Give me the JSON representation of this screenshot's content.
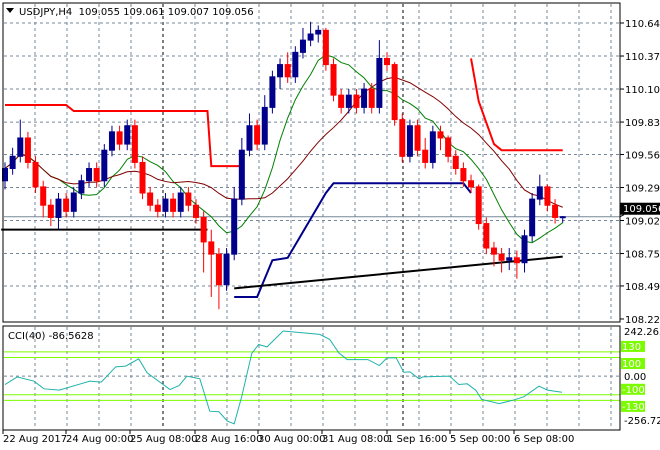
{
  "window": {
    "symbol_title": "USDJPY,H4  109.055 109.061 109.007 109.056",
    "menu_icon": "triangle-down-icon"
  },
  "colors": {
    "bull_candle": "#00008b",
    "bear_candle": "#ff0000",
    "ma_fast": "#008000",
    "ma_slow": "#800000",
    "upper_stop": "#ff0000",
    "lower_stop": "#00008b",
    "trendline": "#000000",
    "cci_line": "#20b2aa",
    "cci_levels": "#7cfc00",
    "grid": "#778899"
  },
  "price_axis": {
    "labels": [
      "110.640",
      "110.370",
      "110.100",
      "109.830",
      "109.565",
      "109.295",
      "109.025",
      "108.755",
      "108.490",
      "108.220"
    ],
    "current_price": "109.056"
  },
  "time_axis": {
    "labels": [
      "22 Aug 2017",
      "24 Aug 00:00",
      "25 Aug 08:00",
      "28 Aug 16:00",
      "30 Aug 00:00",
      "31 Aug 08:00",
      "1 Sep 16:00",
      "5 Sep 00:00",
      "6 Sep 08:00"
    ]
  },
  "cci": {
    "label": "CCI(40) -86.5628",
    "axis_max": "242.2636",
    "axis_zero": "0.00",
    "axis_min": "-256.7237",
    "levels": [
      "130",
      "100",
      "-100",
      "-130"
    ]
  },
  "chart_data": [
    {
      "type": "candlestick",
      "title": "USDJPY,H4",
      "ylim": [
        108.22,
        110.64
      ],
      "ohlc": [
        [
          109.35,
          109.5,
          109.28,
          109.45
        ],
        [
          109.45,
          109.62,
          109.4,
          109.55
        ],
        [
          109.55,
          109.85,
          109.5,
          109.7
        ],
        [
          109.7,
          109.75,
          109.45,
          109.5
        ],
        [
          109.5,
          109.55,
          109.25,
          109.3
        ],
        [
          109.3,
          109.35,
          109.05,
          109.15
        ],
        [
          109.15,
          109.2,
          108.98,
          109.05
        ],
        [
          109.05,
          109.25,
          108.95,
          109.2
        ],
        [
          109.2,
          109.25,
          109.05,
          109.1
        ],
        [
          109.1,
          109.3,
          109.05,
          109.25
        ],
        [
          109.25,
          109.4,
          109.2,
          109.35
        ],
        [
          109.35,
          109.5,
          109.3,
          109.45
        ],
        [
          109.45,
          109.5,
          109.3,
          109.35
        ],
        [
          109.35,
          109.65,
          109.3,
          109.6
        ],
        [
          109.6,
          109.8,
          109.55,
          109.75
        ],
        [
          109.75,
          109.8,
          109.6,
          109.65
        ],
        [
          109.65,
          109.85,
          109.6,
          109.8
        ],
        [
          109.8,
          109.85,
          109.45,
          109.5
        ],
        [
          109.5,
          109.55,
          109.2,
          109.25
        ],
        [
          109.25,
          109.3,
          109.1,
          109.15
        ],
        [
          109.15,
          109.2,
          109.05,
          109.1
        ],
        [
          109.1,
          109.25,
          109.05,
          109.2
        ],
        [
          109.2,
          109.25,
          109.05,
          109.1
        ],
        [
          109.1,
          109.3,
          109.05,
          109.25
        ],
        [
          109.25,
          109.3,
          109.1,
          109.15
        ],
        [
          109.15,
          109.2,
          109.0,
          109.05
        ],
        [
          109.05,
          109.1,
          108.6,
          108.85
        ],
        [
          108.85,
          108.95,
          108.4,
          108.75
        ],
        [
          108.75,
          108.8,
          108.3,
          108.5
        ],
        [
          108.5,
          108.8,
          108.45,
          108.75
        ],
        [
          108.75,
          109.3,
          108.7,
          109.2
        ],
        [
          109.2,
          109.7,
          109.15,
          109.6
        ],
        [
          109.6,
          109.9,
          109.55,
          109.8
        ],
        [
          109.8,
          109.85,
          109.6,
          109.65
        ],
        [
          109.65,
          110.05,
          109.6,
          109.95
        ],
        [
          109.95,
          110.25,
          109.9,
          110.2
        ],
        [
          110.2,
          110.35,
          110.1,
          110.3
        ],
        [
          110.3,
          110.4,
          110.15,
          110.2
        ],
        [
          110.2,
          110.45,
          110.15,
          110.4
        ],
        [
          110.4,
          110.6,
          110.35,
          110.5
        ],
        [
          110.5,
          110.65,
          110.45,
          110.55
        ],
        [
          110.55,
          110.62,
          110.48,
          110.58
        ],
        [
          110.58,
          110.6,
          110.25,
          110.3
        ],
        [
          110.3,
          110.35,
          110.0,
          110.05
        ],
        [
          110.05,
          110.1,
          109.9,
          109.95
        ],
        [
          109.95,
          110.1,
          109.9,
          110.05
        ],
        [
          110.05,
          110.1,
          109.9,
          109.95
        ],
        [
          109.95,
          110.15,
          109.9,
          110.1
        ],
        [
          110.1,
          110.15,
          109.9,
          109.95
        ],
        [
          109.95,
          110.5,
          109.9,
          110.35
        ],
        [
          110.35,
          110.4,
          110.25,
          110.3
        ],
        [
          110.3,
          110.32,
          109.8,
          109.85
        ],
        [
          109.85,
          109.9,
          109.5,
          109.55
        ],
        [
          109.55,
          109.85,
          109.5,
          109.8
        ],
        [
          109.8,
          109.85,
          109.55,
          109.6
        ],
        [
          109.6,
          109.7,
          109.45,
          109.5
        ],
        [
          109.5,
          109.8,
          109.45,
          109.75
        ],
        [
          109.75,
          109.8,
          109.6,
          109.7
        ],
        [
          109.7,
          109.72,
          109.5,
          109.55
        ],
        [
          109.55,
          109.6,
          109.4,
          109.45
        ],
        [
          109.45,
          109.5,
          109.3,
          109.35
        ],
        [
          109.35,
          109.4,
          109.25,
          109.3
        ],
        [
          109.3,
          109.32,
          108.95,
          109.0
        ],
        [
          109.0,
          109.05,
          108.75,
          108.8
        ],
        [
          108.8,
          108.85,
          108.65,
          108.75
        ],
        [
          108.75,
          108.8,
          108.6,
          108.7
        ],
        [
          108.7,
          108.8,
          108.62,
          108.72
        ],
        [
          108.72,
          108.78,
          108.55,
          108.68
        ],
        [
          108.68,
          108.95,
          108.6,
          108.9
        ],
        [
          108.9,
          109.25,
          108.85,
          109.2
        ],
        [
          109.2,
          109.4,
          109.15,
          109.3
        ],
        [
          109.3,
          109.32,
          109.1,
          109.15
        ],
        [
          109.15,
          109.2,
          109.0,
          109.05
        ],
        [
          109.055,
          109.061,
          109.007,
          109.056
        ]
      ],
      "upper_stop_lines": [
        [
          [
            0,
            109.97
          ],
          [
            8,
            109.97
          ],
          [
            9,
            109.92
          ],
          [
            26.5,
            109.92
          ],
          [
            27,
            109.47
          ],
          [
            31,
            109.47
          ]
        ],
        [
          [
            61,
            110.35
          ],
          [
            62,
            110.0
          ],
          [
            64,
            109.65
          ],
          [
            65,
            109.6
          ],
          [
            73,
            109.6
          ]
        ]
      ],
      "lower_stop_line": [
        [
          30,
          108.4
        ],
        [
          33,
          108.4
        ],
        [
          35,
          108.7
        ],
        [
          37,
          108.72
        ],
        [
          42,
          109.25
        ],
        [
          43,
          109.33
        ],
        [
          60,
          109.33
        ],
        [
          61,
          109.25
        ]
      ],
      "trendlines": [
        [
          [
            -0.5,
            108.95
          ],
          [
            26.5,
            108.95
          ]
        ],
        [
          [
            30,
            108.47
          ],
          [
            73,
            108.73
          ]
        ]
      ]
    },
    {
      "type": "line",
      "title": "CCI(40)",
      "ylim": [
        -256.7237,
        242.2636
      ],
      "points": [
        [
          0,
          -45
        ],
        [
          1.6,
          -4
        ],
        [
          3.8,
          -27
        ],
        [
          5.1,
          -68
        ],
        [
          7.1,
          -75
        ],
        [
          11.1,
          -27
        ],
        [
          12.6,
          -32
        ],
        [
          14.5,
          50
        ],
        [
          15.8,
          54
        ],
        [
          17.5,
          93
        ],
        [
          18.6,
          18
        ],
        [
          21.6,
          -72
        ],
        [
          22.8,
          -50
        ],
        [
          23.8,
          0
        ],
        [
          25.5,
          -14
        ],
        [
          26.8,
          -188
        ],
        [
          28.0,
          -191
        ],
        [
          29.1,
          -241
        ],
        [
          30.0,
          -256
        ],
        [
          31.0,
          -107
        ],
        [
          32.3,
          122
        ],
        [
          33.2,
          170
        ],
        [
          34.3,
          157
        ],
        [
          36.4,
          242
        ],
        [
          38.0,
          236
        ],
        [
          41.2,
          224
        ],
        [
          42.5,
          197
        ],
        [
          43.7,
          125
        ],
        [
          44.8,
          89
        ],
        [
          47.5,
          89
        ],
        [
          49.0,
          57
        ],
        [
          50.0,
          98
        ],
        [
          51.2,
          98
        ],
        [
          52.2,
          21
        ],
        [
          53.0,
          23
        ],
        [
          54.2,
          -14
        ],
        [
          54.7,
          -4
        ],
        [
          58.2,
          0
        ],
        [
          59.4,
          -45
        ],
        [
          60.5,
          -41
        ],
        [
          61.6,
          -75
        ],
        [
          62.4,
          -125
        ],
        [
          64.7,
          -147
        ],
        [
          66.5,
          -129
        ],
        [
          67.9,
          -111
        ],
        [
          69.9,
          -54
        ],
        [
          71.0,
          -75
        ],
        [
          72.9,
          -86.5628
        ]
      ],
      "levels": [
        130,
        100,
        -100,
        -130
      ]
    }
  ]
}
